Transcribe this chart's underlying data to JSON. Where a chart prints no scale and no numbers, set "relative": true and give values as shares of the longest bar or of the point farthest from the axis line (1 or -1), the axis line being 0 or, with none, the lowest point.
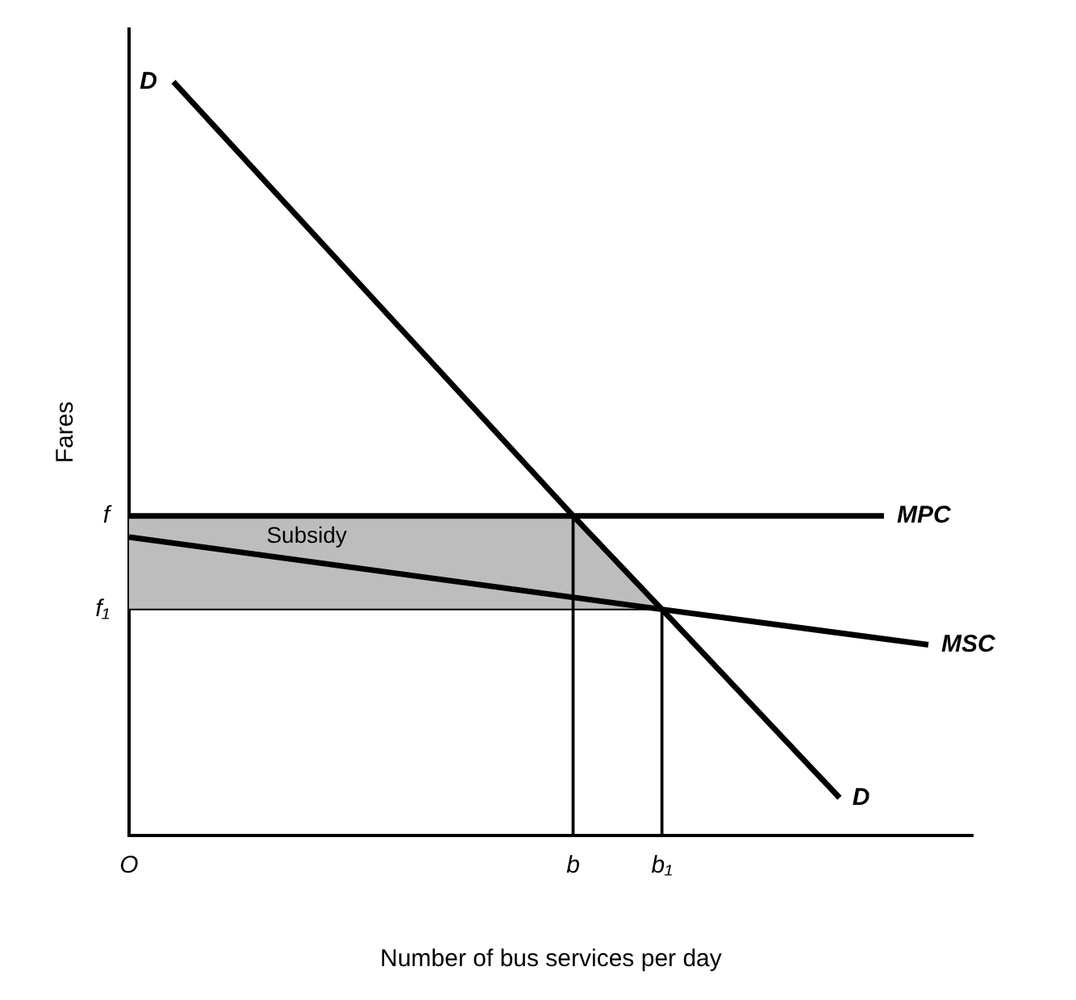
{
  "chart_data": {
    "type": "line",
    "xlabel": "Number of bus services per day",
    "ylabel": "Fares",
    "relative": true,
    "legend": false,
    "marker": "none",
    "line_style": "solid",
    "categories": [
      "O",
      null,
      null,
      null,
      null,
      null,
      null,
      null,
      null,
      null,
      "b",
      null,
      "b₁",
      null,
      null,
      null,
      null,
      null,
      null,
      null
    ],
    "annotations": [
      "f",
      "f₁"
    ],
    "series": [
      {
        "name": "Subsidy",
        "type": "area",
        "color": "#bdbdbd",
        "values": [
          0.424,
          null,
          null,
          null,
          null,
          null,
          null,
          null,
          null,
          null,
          0.424,
          null,
          0.3,
          null,
          null,
          null,
          null,
          null,
          null,
          null
        ]
      },
      {
        "color": "#000000",
        "values": [
          0.3,
          null,
          null,
          null,
          null,
          null,
          null,
          null,
          null,
          null,
          null,
          null,
          0.3,
          null,
          null,
          null,
          null,
          null,
          null,
          null
        ]
      },
      {
        "name": "D",
        "color": "#000000",
        "values": [
          null,
          1,
          null,
          null,
          null,
          null,
          null,
          null,
          null,
          null,
          0.424,
          null,
          0.3,
          null,
          null,
          null,
          0.05,
          null,
          null,
          null
        ]
      },
      {
        "name": "MPC",
        "color": "#000000",
        "values": [
          0.424,
          null,
          null,
          null,
          null,
          null,
          null,
          null,
          null,
          null,
          0.424,
          null,
          null,
          null,
          null,
          null,
          null,
          0.424,
          null,
          null
        ]
      },
      {
        "name": "MSC",
        "color": "#000000",
        "values": [
          0.396,
          null,
          null,
          null,
          null,
          null,
          null,
          null,
          null,
          null,
          null,
          null,
          0.3,
          null,
          null,
          null,
          null,
          null,
          0.253,
          null
        ]
      },
      {
        "type": "bar",
        "color": "#000000",
        "values": [
          null,
          null,
          null,
          null,
          null,
          null,
          null,
          null,
          null,
          null,
          0.424,
          null,
          0.3,
          null,
          null,
          null,
          null,
          null,
          null,
          null
        ]
      }
    ]
  }
}
